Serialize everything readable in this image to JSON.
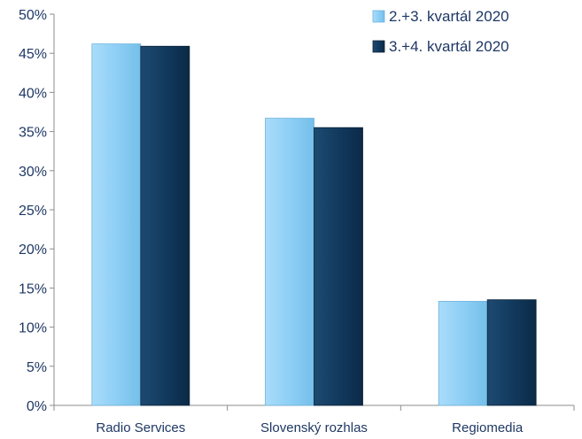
{
  "chart_data": {
    "type": "bar",
    "categories": [
      "Radio Services",
      "Slovenský rozhlas",
      "Regiomedia"
    ],
    "series": [
      {
        "name": "2.+3. kvartál 2020",
        "values": [
          46.2,
          36.7,
          13.3
        ],
        "color": "#8ecff5"
      },
      {
        "name": "3.+4. kvartál 2020",
        "values": [
          45.9,
          35.5,
          13.5
        ],
        "color": "#123a5e"
      }
    ],
    "ylim": [
      0,
      50
    ],
    "yticks": [
      "0%",
      "5%",
      "10%",
      "15%",
      "20%",
      "25%",
      "30%",
      "35%",
      "40%",
      "45%",
      "50%"
    ],
    "title": "",
    "xlabel": "",
    "ylabel": "",
    "legend_position": "top-right",
    "grid": false
  }
}
